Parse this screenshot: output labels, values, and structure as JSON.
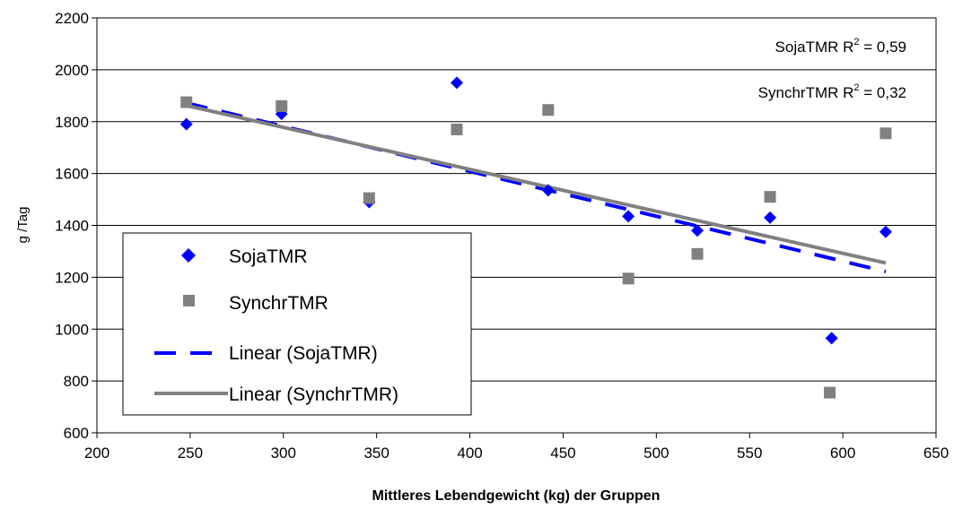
{
  "chart_data": {
    "type": "scatter",
    "title": "",
    "xlabel": "Mittleres Lebendgewicht (kg) der Gruppen",
    "ylabel": "g /Tag",
    "xlim": [
      200,
      650
    ],
    "ylim": [
      600,
      2200
    ],
    "x_ticks": [
      200,
      250,
      300,
      350,
      400,
      450,
      500,
      550,
      600,
      650
    ],
    "y_ticks": [
      600,
      800,
      1000,
      1200,
      1400,
      1600,
      1800,
      2000,
      2200
    ],
    "grid": "horizontal",
    "legend_position": "left",
    "series": [
      {
        "name": "SojaTMR",
        "marker": "diamond",
        "color": "#0000ff",
        "points": [
          {
            "x": 248,
            "y": 1790
          },
          {
            "x": 299,
            "y": 1830
          },
          {
            "x": 346,
            "y": 1490
          },
          {
            "x": 393,
            "y": 1950
          },
          {
            "x": 442,
            "y": 1535
          },
          {
            "x": 485,
            "y": 1435
          },
          {
            "x": 522,
            "y": 1380
          },
          {
            "x": 561,
            "y": 1430
          },
          {
            "x": 594,
            "y": 965
          },
          {
            "x": 623,
            "y": 1375
          }
        ]
      },
      {
        "name": "SynchrTMR",
        "marker": "square",
        "color": "#808080",
        "points": [
          {
            "x": 248,
            "y": 1875
          },
          {
            "x": 299,
            "y": 1860
          },
          {
            "x": 346,
            "y": 1505
          },
          {
            "x": 393,
            "y": 1770
          },
          {
            "x": 442,
            "y": 1845
          },
          {
            "x": 485,
            "y": 1195
          },
          {
            "x": 522,
            "y": 1290
          },
          {
            "x": 561,
            "y": 1510
          },
          {
            "x": 593,
            "y": 755
          },
          {
            "x": 623,
            "y": 1755
          }
        ]
      }
    ],
    "trendlines": [
      {
        "name": "Linear (SojaTMR)",
        "color": "#0000ff",
        "style": "dashed",
        "x": [
          248,
          623
        ],
        "y": [
          1872,
          1222
        ]
      },
      {
        "name": "Linear (SynchrTMR)",
        "color": "#808080",
        "style": "solid",
        "x": [
          248,
          623
        ],
        "y": [
          1862,
          1255
        ]
      }
    ],
    "annotations": [
      {
        "series": "SojaTMR",
        "prefix": "SojaTMR R",
        "sup": "2",
        "suffix": " = 0,59"
      },
      {
        "series": "SynchrTMR",
        "prefix": "SynchrTMR R",
        "sup": "2",
        "suffix": " = 0,32"
      }
    ]
  }
}
